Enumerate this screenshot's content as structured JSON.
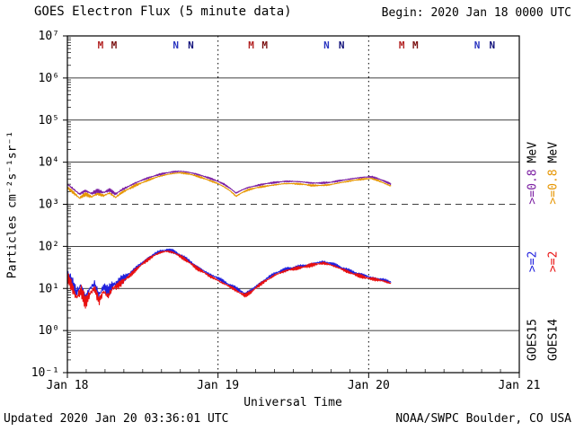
{
  "header": {
    "title": "GOES Electron Flux (5 minute data)",
    "begin": "Begin: 2020 Jan 18 0000 UTC"
  },
  "footer": {
    "updated": "Updated 2020 Jan 20 03:36:01 UTC",
    "credit": "NOAA/SWPC Boulder, CO USA"
  },
  "legend": {
    "goes15": [
      {
        "text": "GOES15",
        "color": "#000000"
      },
      {
        "text": ">=2",
        "color": "#2020dd"
      },
      {
        "text": ">=0.8",
        "color": "#7b1fa2"
      },
      {
        "text": "MeV",
        "color": "#000000"
      }
    ],
    "goes14": [
      {
        "text": "GOES14",
        "color": "#000000"
      },
      {
        "text": ">=2",
        "color": "#e81010"
      },
      {
        "text": ">=0.8",
        "color": "#e69500"
      },
      {
        "text": "MeV",
        "color": "#000000"
      }
    ]
  },
  "chart_data": {
    "type": "line",
    "title": "GOES Electron Flux (5 minute data)",
    "xlabel": "Universal Time",
    "ylabel": "Particles cm⁻²s⁻¹sr⁻¹",
    "x_unit_days_since": "2020 Jan 18 0000 UTC",
    "y_scale": "log",
    "ylim": [
      0.1,
      10000000
    ],
    "xlim_days": [
      0,
      3
    ],
    "x_ticks": [
      {
        "t": 0,
        "label": "Jan 18"
      },
      {
        "t": 1,
        "label": "Jan 19"
      },
      {
        "t": 2,
        "label": "Jan 20"
      },
      {
        "t": 3,
        "label": "Jan 21"
      }
    ],
    "y_ticks": [
      {
        "exp": 7,
        "label": "10⁷"
      },
      {
        "exp": 6,
        "label": "10⁶"
      },
      {
        "exp": 5,
        "label": "10⁵"
      },
      {
        "exp": 4,
        "label": "10⁴"
      },
      {
        "exp": 3,
        "label": "10³"
      },
      {
        "exp": 2,
        "label": "10²"
      },
      {
        "exp": 1,
        "label": "10¹"
      },
      {
        "exp": 0,
        "label": "10⁰"
      },
      {
        "exp": -1,
        "label": "10⁻¹"
      }
    ],
    "threshold_flux": 1000,
    "day_boundaries": [
      1,
      2
    ],
    "event_markers": [
      {
        "label": "M",
        "t": 0.22,
        "color": "#b22222"
      },
      {
        "label": "M",
        "t": 0.31,
        "color": "#7a1010"
      },
      {
        "label": "N",
        "t": 0.72,
        "color": "#2a35c0"
      },
      {
        "label": "N",
        "t": 0.82,
        "color": "#10107a"
      },
      {
        "label": "M",
        "t": 1.22,
        "color": "#b22222"
      },
      {
        "label": "M",
        "t": 1.31,
        "color": "#7a1010"
      },
      {
        "label": "N",
        "t": 1.72,
        "color": "#2a35c0"
      },
      {
        "label": "N",
        "t": 1.82,
        "color": "#10107a"
      },
      {
        "label": "M",
        "t": 2.22,
        "color": "#b22222"
      },
      {
        "label": "M",
        "t": 2.31,
        "color": "#7a1010"
      },
      {
        "label": "N",
        "t": 2.72,
        "color": "#2a35c0"
      },
      {
        "label": "N",
        "t": 2.82,
        "color": "#10107a"
      }
    ],
    "series": [
      {
        "name": "GOES14 >=0.8 MeV",
        "satellite": "GOES14",
        "channel": ">=0.8 MeV",
        "color": "#e69500",
        "noise": {
          "early_t": 0.38,
          "early_amp": 0.05,
          "amp": 0.022
        },
        "points": [
          [
            0.0,
            2500
          ],
          [
            0.04,
            1900
          ],
          [
            0.08,
            1400
          ],
          [
            0.12,
            1750
          ],
          [
            0.16,
            1500
          ],
          [
            0.2,
            1800
          ],
          [
            0.24,
            1600
          ],
          [
            0.28,
            1850
          ],
          [
            0.32,
            1450
          ],
          [
            0.36,
            1900
          ],
          [
            0.4,
            2250
          ],
          [
            0.45,
            2800
          ],
          [
            0.5,
            3300
          ],
          [
            0.55,
            3900
          ],
          [
            0.6,
            4500
          ],
          [
            0.65,
            5000
          ],
          [
            0.7,
            5400
          ],
          [
            0.75,
            5600
          ],
          [
            0.8,
            5300
          ],
          [
            0.85,
            4800
          ],
          [
            0.9,
            4200
          ],
          [
            0.95,
            3600
          ],
          [
            1.0,
            3100
          ],
          [
            1.04,
            2600
          ],
          [
            1.08,
            2100
          ],
          [
            1.12,
            1550
          ],
          [
            1.16,
            1900
          ],
          [
            1.2,
            2200
          ],
          [
            1.26,
            2500
          ],
          [
            1.32,
            2700
          ],
          [
            1.38,
            2900
          ],
          [
            1.44,
            3100
          ],
          [
            1.5,
            3100
          ],
          [
            1.56,
            3000
          ],
          [
            1.62,
            2800
          ],
          [
            1.68,
            2800
          ],
          [
            1.74,
            2900
          ],
          [
            1.8,
            3200
          ],
          [
            1.86,
            3500
          ],
          [
            1.92,
            3800
          ],
          [
            1.97,
            4000
          ],
          [
            2.02,
            4100
          ],
          [
            2.06,
            3700
          ],
          [
            2.1,
            3200
          ],
          [
            2.15,
            2700
          ]
        ]
      },
      {
        "name": "GOES15 >=0.8 MeV",
        "satellite": "GOES15",
        "channel": ">=0.8 MeV",
        "color": "#7b1fa2",
        "noise": {
          "early_t": 0.38,
          "early_amp": 0.05,
          "amp": 0.022
        },
        "points": [
          [
            0.0,
            3000
          ],
          [
            0.04,
            2300
          ],
          [
            0.08,
            1750
          ],
          [
            0.12,
            2100
          ],
          [
            0.16,
            1800
          ],
          [
            0.2,
            2100
          ],
          [
            0.24,
            1900
          ],
          [
            0.28,
            2200
          ],
          [
            0.32,
            1750
          ],
          [
            0.36,
            2200
          ],
          [
            0.4,
            2600
          ],
          [
            0.45,
            3200
          ],
          [
            0.5,
            3800
          ],
          [
            0.55,
            4400
          ],
          [
            0.6,
            5000
          ],
          [
            0.65,
            5500
          ],
          [
            0.7,
            5900
          ],
          [
            0.75,
            6100
          ],
          [
            0.8,
            5800
          ],
          [
            0.85,
            5300
          ],
          [
            0.9,
            4700
          ],
          [
            0.95,
            4100
          ],
          [
            1.0,
            3500
          ],
          [
            1.04,
            3000
          ],
          [
            1.08,
            2400
          ],
          [
            1.12,
            1850
          ],
          [
            1.16,
            2200
          ],
          [
            1.2,
            2500
          ],
          [
            1.26,
            2800
          ],
          [
            1.32,
            3100
          ],
          [
            1.38,
            3300
          ],
          [
            1.44,
            3500
          ],
          [
            1.5,
            3500
          ],
          [
            1.56,
            3400
          ],
          [
            1.62,
            3200
          ],
          [
            1.68,
            3200
          ],
          [
            1.74,
            3300
          ],
          [
            1.8,
            3600
          ],
          [
            1.86,
            3900
          ],
          [
            1.92,
            4200
          ],
          [
            1.97,
            4400
          ],
          [
            2.02,
            4500
          ],
          [
            2.06,
            4100
          ],
          [
            2.1,
            3600
          ],
          [
            2.15,
            3000
          ]
        ]
      },
      {
        "name": "GOES15 >=2 MeV",
        "satellite": "GOES15",
        "channel": ">=2 MeV",
        "color": "#2020dd",
        "noise": {
          "early_t": 0.31,
          "early_amp": 0.17,
          "amp": 0.05
        },
        "points": [
          [
            0.0,
            22
          ],
          [
            0.03,
            14
          ],
          [
            0.06,
            8
          ],
          [
            0.09,
            12
          ],
          [
            0.12,
            6
          ],
          [
            0.15,
            10
          ],
          [
            0.18,
            13
          ],
          [
            0.21,
            7
          ],
          [
            0.24,
            11
          ],
          [
            0.27,
            8.5
          ],
          [
            0.3,
            12
          ],
          [
            0.34,
            14
          ],
          [
            0.38,
            18
          ],
          [
            0.42,
            24
          ],
          [
            0.46,
            32
          ],
          [
            0.5,
            42
          ],
          [
            0.54,
            54
          ],
          [
            0.58,
            67
          ],
          [
            0.62,
            77
          ],
          [
            0.66,
            82
          ],
          [
            0.7,
            77
          ],
          [
            0.74,
            65
          ],
          [
            0.78,
            53
          ],
          [
            0.82,
            42
          ],
          [
            0.86,
            33
          ],
          [
            0.9,
            27
          ],
          [
            0.94,
            22
          ],
          [
            0.98,
            19
          ],
          [
            1.02,
            16
          ],
          [
            1.06,
            13
          ],
          [
            1.1,
            11
          ],
          [
            1.14,
            9
          ],
          [
            1.18,
            7.5
          ],
          [
            1.22,
            9
          ],
          [
            1.26,
            12
          ],
          [
            1.3,
            15
          ],
          [
            1.34,
            19
          ],
          [
            1.38,
            23
          ],
          [
            1.42,
            26
          ],
          [
            1.46,
            29
          ],
          [
            1.5,
            31
          ],
          [
            1.54,
            33
          ],
          [
            1.58,
            35
          ],
          [
            1.62,
            38
          ],
          [
            1.66,
            41
          ],
          [
            1.7,
            43
          ],
          [
            1.74,
            40
          ],
          [
            1.78,
            36
          ],
          [
            1.82,
            31
          ],
          [
            1.86,
            27
          ],
          [
            1.9,
            24
          ],
          [
            1.94,
            22
          ],
          [
            1.98,
            20
          ],
          [
            2.02,
            18
          ],
          [
            2.06,
            17
          ],
          [
            2.1,
            16
          ],
          [
            2.15,
            14
          ]
        ]
      },
      {
        "name": "GOES14 >=2 MeV",
        "satellite": "GOES14",
        "channel": ">=2 MeV",
        "color": "#e81010",
        "noise": {
          "early_t": 0.31,
          "early_amp": 0.17,
          "amp": 0.05
        },
        "points": [
          [
            0.0,
            19
          ],
          [
            0.03,
            11
          ],
          [
            0.06,
            6
          ],
          [
            0.09,
            9
          ],
          [
            0.12,
            4.5
          ],
          [
            0.15,
            7.5
          ],
          [
            0.18,
            10
          ],
          [
            0.21,
            5
          ],
          [
            0.24,
            8.5
          ],
          [
            0.27,
            6.5
          ],
          [
            0.3,
            10
          ],
          [
            0.34,
            12
          ],
          [
            0.38,
            16
          ],
          [
            0.42,
            21
          ],
          [
            0.46,
            29
          ],
          [
            0.5,
            39
          ],
          [
            0.54,
            50
          ],
          [
            0.58,
            62
          ],
          [
            0.62,
            72
          ],
          [
            0.66,
            77
          ],
          [
            0.7,
            72
          ],
          [
            0.74,
            61
          ],
          [
            0.78,
            49
          ],
          [
            0.82,
            39
          ],
          [
            0.86,
            30
          ],
          [
            0.9,
            25
          ],
          [
            0.94,
            20
          ],
          [
            0.98,
            17
          ],
          [
            1.02,
            14
          ],
          [
            1.06,
            12
          ],
          [
            1.1,
            10
          ],
          [
            1.14,
            8
          ],
          [
            1.18,
            6.8
          ],
          [
            1.22,
            8.2
          ],
          [
            1.26,
            11
          ],
          [
            1.3,
            14
          ],
          [
            1.34,
            17
          ],
          [
            1.38,
            21
          ],
          [
            1.42,
            24
          ],
          [
            1.46,
            27
          ],
          [
            1.5,
            29
          ],
          [
            1.54,
            31
          ],
          [
            1.58,
            33
          ],
          [
            1.62,
            36
          ],
          [
            1.66,
            38
          ],
          [
            1.7,
            40
          ],
          [
            1.74,
            37
          ],
          [
            1.78,
            33
          ],
          [
            1.82,
            29
          ],
          [
            1.86,
            25
          ],
          [
            1.9,
            22
          ],
          [
            1.94,
            20
          ],
          [
            1.98,
            18
          ],
          [
            2.02,
            17
          ],
          [
            2.06,
            16
          ],
          [
            2.1,
            15
          ],
          [
            2.15,
            13
          ]
        ]
      }
    ]
  }
}
